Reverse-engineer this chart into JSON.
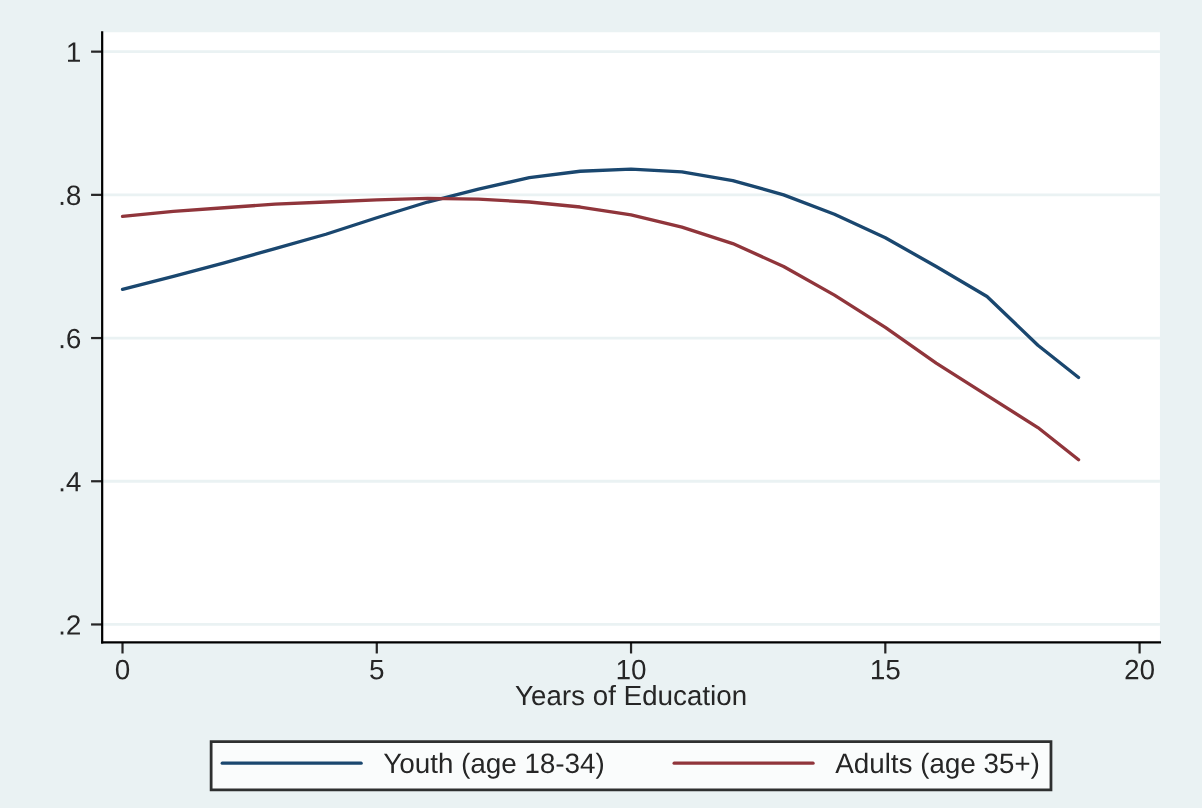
{
  "chart_data": {
    "type": "line",
    "xlabel": "Years of Education",
    "x": [
      0,
      1,
      2,
      3,
      4,
      5,
      6,
      7,
      8,
      9,
      10,
      11,
      12,
      13,
      14,
      15,
      16,
      17,
      18,
      18.8
    ],
    "series": [
      {
        "name": "Youth (age 18-34)",
        "color": "#1a476f",
        "values": [
          0.668,
          0.686,
          0.705,
          0.725,
          0.745,
          0.768,
          0.79,
          0.808,
          0.824,
          0.833,
          0.836,
          0.832,
          0.82,
          0.8,
          0.773,
          0.74,
          0.7,
          0.658,
          0.59,
          0.545
        ]
      },
      {
        "name": "Adults (age 35+)",
        "color": "#90353b",
        "values": [
          0.77,
          0.777,
          0.782,
          0.787,
          0.79,
          0.793,
          0.795,
          0.794,
          0.79,
          0.783,
          0.772,
          0.755,
          0.732,
          0.7,
          0.66,
          0.615,
          0.565,
          0.52,
          0.475,
          0.43
        ]
      }
    ],
    "xlim": [
      -0.4,
      20.4
    ],
    "xticks": [
      0,
      5,
      10,
      15,
      20
    ],
    "ylim": [
      0.175,
      1.027
    ],
    "yticks": [
      {
        "value": 0.2,
        "label": ".2"
      },
      {
        "value": 0.4,
        "label": ".4"
      },
      {
        "value": 0.6,
        "label": ".6"
      },
      {
        "value": 0.8,
        "label": ".8"
      },
      {
        "value": 1,
        "label": "1"
      }
    ],
    "grid": "y",
    "legend": "bottom",
    "line_style": "solid",
    "marker": "none"
  }
}
